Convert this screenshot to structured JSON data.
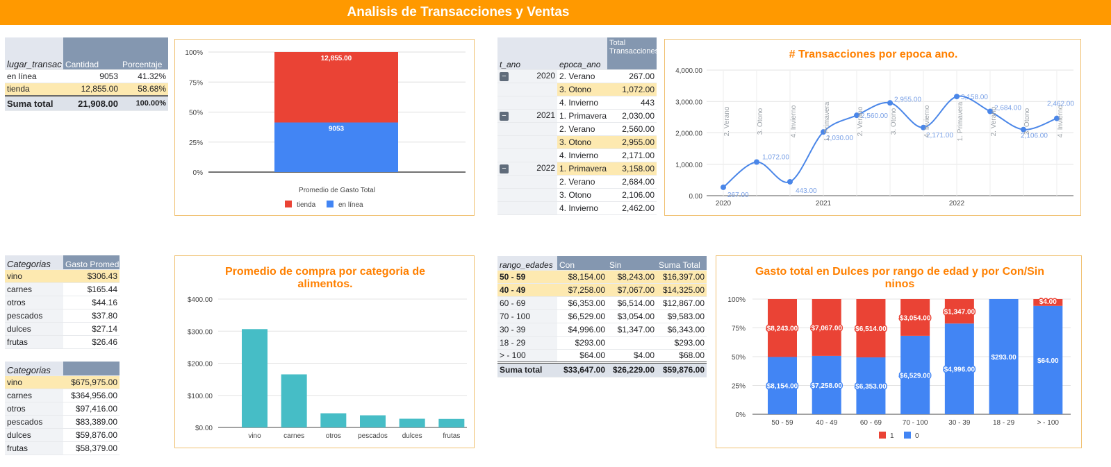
{
  "header": {
    "title": "Analisis de Transacciones y Ventas"
  },
  "lugar_table": {
    "headers": [
      "lugar_transac",
      "Cantidad",
      "Porcentaje"
    ],
    "rows": [
      {
        "label": "en línea",
        "cantidad": "9053",
        "porcentaje": "41.32%"
      },
      {
        "label": "tienda",
        "cantidad": "12,855.00",
        "porcentaje": "58.68%"
      }
    ],
    "total": {
      "label": "Suma total",
      "cantidad": "21,908.00",
      "porcentaje": "100.00%"
    }
  },
  "epoca_table": {
    "headers": [
      "t_ano",
      "epoca_ano",
      "Total Transacciones"
    ],
    "rows": [
      {
        "year": "2020",
        "epoca": "2. Verano",
        "total": "267.00",
        "hl": false
      },
      {
        "year": "",
        "epoca": "3. Otono",
        "total": "1,072.00",
        "hl": true
      },
      {
        "year": "",
        "epoca": "4. Invierno",
        "total": "443",
        "hl": false
      },
      {
        "year": "2021",
        "epoca": "1. Primavera",
        "total": "2,030.00",
        "hl": false
      },
      {
        "year": "",
        "epoca": "2. Verano",
        "total": "2,560.00",
        "hl": false
      },
      {
        "year": "",
        "epoca": "3. Otono",
        "total": "2,955.00",
        "hl": true
      },
      {
        "year": "",
        "epoca": "4. Invierno",
        "total": "2,171.00",
        "hl": false
      },
      {
        "year": "2022",
        "epoca": "1. Primavera",
        "total": "3,158.00",
        "hl": true
      },
      {
        "year": "",
        "epoca": "2. Verano",
        "total": "2,684.00",
        "hl": false
      },
      {
        "year": "",
        "epoca": "3. Otono",
        "total": "2,106.00",
        "hl": false
      },
      {
        "year": "",
        "epoca": "4. Invierno",
        "total": "2,462.00",
        "hl": false
      }
    ],
    "collapse_glyph": "−"
  },
  "gasto_table": {
    "headers": [
      "Categorias",
      "Gasto Promedio"
    ],
    "rows": [
      {
        "cat": "vino",
        "val": "$306.43",
        "hl": true
      },
      {
        "cat": "carnes",
        "val": "$165.44",
        "hl": false
      },
      {
        "cat": "otros",
        "val": "$44.16",
        "hl": false
      },
      {
        "cat": "pescados",
        "val": "$37.80",
        "hl": false
      },
      {
        "cat": "dulces",
        "val": "$27.14",
        "hl": false
      },
      {
        "cat": "frutas",
        "val": "$26.46",
        "hl": false
      }
    ]
  },
  "total_table": {
    "headers": [
      "Categorias",
      ""
    ],
    "rows": [
      {
        "cat": "vino",
        "val": "$675,975.00",
        "hl": true
      },
      {
        "cat": "carnes",
        "val": "$364,956.00",
        "hl": false
      },
      {
        "cat": "otros",
        "val": "$97,416.00",
        "hl": false
      },
      {
        "cat": "pescados",
        "val": "$83,389.00",
        "hl": false
      },
      {
        "cat": "dulces",
        "val": "$59,876.00",
        "hl": false
      },
      {
        "cat": "frutas",
        "val": "$58,379.00",
        "hl": false
      }
    ]
  },
  "edades_table": {
    "headers": [
      "rango_edades",
      "Con",
      "Sin",
      "Suma Total"
    ],
    "rows": [
      {
        "rango": "50 - 59",
        "con": "$8,154.00",
        "sin": "$8,243.00",
        "suma": "$16,397.00",
        "hl": true
      },
      {
        "rango": "40 - 49",
        "con": "$7,258.00",
        "sin": "$7,067.00",
        "suma": "$14,325.00",
        "hl": true
      },
      {
        "rango": "60 - 69",
        "con": "$6,353.00",
        "sin": "$6,514.00",
        "suma": "$12,867.00",
        "hl": false
      },
      {
        "rango": "70 - 100",
        "con": "$6,529.00",
        "sin": "$3,054.00",
        "suma": "$9,583.00",
        "hl": false
      },
      {
        "rango": "30 - 39",
        "con": "$4,996.00",
        "sin": "$1,347.00",
        "suma": "$6,343.00",
        "hl": false
      },
      {
        "rango": "18 - 29",
        "con": "$293.00",
        "sin": "",
        "suma": "$293.00",
        "hl": false
      },
      {
        "rango": "> - 100",
        "con": "$64.00",
        "sin": "$4.00",
        "suma": "$68.00",
        "hl": false
      }
    ],
    "total": {
      "rango": "Suma total",
      "con": "$33,647.00",
      "sin": "$26,229.00",
      "suma": "$59,876.00"
    }
  },
  "chart_data": [
    {
      "id": "promedio-gasto",
      "type": "bar",
      "stacked": "percent",
      "title": "",
      "xlabel": "Promedio de Gasto Total",
      "yticks": [
        "0%",
        "25%",
        "50%",
        "75%",
        "100%"
      ],
      "series": [
        {
          "name": "en línea",
          "value": 9053,
          "label": "9053",
          "color": "#4285f4"
        },
        {
          "name": "tienda",
          "value": 12855,
          "label": "12,855.00",
          "color": "#ea4335"
        }
      ],
      "legend": [
        "tienda",
        "en línea"
      ],
      "legend_position": "bottom"
    },
    {
      "id": "transacciones-epoca",
      "type": "line",
      "title": "# Transacciones por epoca ano.",
      "color": "#4a86e8",
      "ylim": [
        0,
        4000
      ],
      "yticks": [
        "0.00",
        "1,000.00",
        "2,000.00",
        "3,000.00",
        "4,000.00"
      ],
      "year_ticks": [
        "2020",
        "2021",
        "2022"
      ],
      "points": [
        {
          "x": "2. Verano",
          "y": 267,
          "label": "267.00"
        },
        {
          "x": "3. Otono",
          "y": 1072,
          "label": "1,072.00"
        },
        {
          "x": "4. Invierno",
          "y": 443,
          "label": "443.00"
        },
        {
          "x": "1. Primavera",
          "y": 2030,
          "label": "2,030.00"
        },
        {
          "x": "2. Verano",
          "y": 2560,
          "label": "2,560.00"
        },
        {
          "x": "3. Otono",
          "y": 2955,
          "label": "2,955.00"
        },
        {
          "x": "4. Invierno",
          "y": 2171,
          "label": "2,171.00"
        },
        {
          "x": "1. Primavera",
          "y": 3158,
          "label": "3,158.00"
        },
        {
          "x": "2. Verano",
          "y": 2684,
          "label": "2,684.00"
        },
        {
          "x": "3. Otono",
          "y": 2106,
          "label": "2,106.00"
        },
        {
          "x": "4. Invierno",
          "y": 2462,
          "label": "2,462.00"
        }
      ]
    },
    {
      "id": "promedio-categoria",
      "type": "bar",
      "title": "Promedio de compra por categoria de alimentos.",
      "title_lines": [
        "Promedio de compra por categoria de",
        "alimentos."
      ],
      "color": "#46bdc6",
      "ylim": [
        0,
        400
      ],
      "yticks": [
        "$0.00",
        "$100.00",
        "$200.00",
        "$300.00",
        "$400.00"
      ],
      "categories": [
        "vino",
        "carnes",
        "otros",
        "pescados",
        "dulces",
        "frutas"
      ],
      "values": [
        306.43,
        165.44,
        44.16,
        37.8,
        27.14,
        26.46
      ]
    },
    {
      "id": "dulces-edad",
      "type": "bar",
      "stacked": "percent",
      "title": "Gasto total en Dulces por rango de edad y por Con/Sin ninos",
      "title_lines": [
        "Gasto total en Dulces por rango de edad y por Con/Sin",
        "ninos"
      ],
      "yticks": [
        "0%",
        "25%",
        "50%",
        "75%",
        "100%"
      ],
      "categories": [
        "50 - 59",
        "40 - 49",
        "60 - 69",
        "70 - 100",
        "30 - 39",
        "18 - 29",
        "> - 100"
      ],
      "series": [
        {
          "name": "0",
          "color": "#4285f4",
          "values": [
            8154,
            7258,
            6353,
            6529,
            4996,
            293,
            64
          ],
          "labels": [
            "$8,154.00",
            "$7,258.00",
            "$6,353.00",
            "$6,529.00",
            "$4,996.00",
            "$293.00",
            "$64.00"
          ]
        },
        {
          "name": "1",
          "color": "#ea4335",
          "values": [
            8243,
            7067,
            6514,
            3054,
            1347,
            0,
            4
          ],
          "labels": [
            "$8,243.00",
            "$7,067.00",
            "$6,514.00",
            "$3,054.00",
            "$1,347.00",
            "",
            "$4.00"
          ]
        }
      ],
      "legend": [
        "1",
        "0"
      ],
      "legend_position": "bottom"
    }
  ]
}
